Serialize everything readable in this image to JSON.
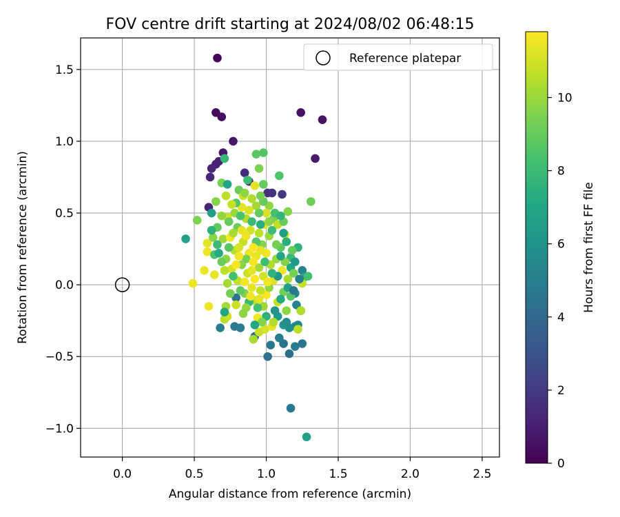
{
  "chart_data": {
    "type": "scatter",
    "title": "FOV centre drift starting at 2024/08/02 06:48:15",
    "xlabel": "Angular distance from reference (arcmin)",
    "ylabel": "Rotation from reference (arcmin)",
    "xlim": [
      -0.29,
      2.62
    ],
    "ylim": [
      -1.2,
      1.72
    ],
    "xticks": [
      0.0,
      0.5,
      1.0,
      1.5,
      2.0,
      2.5
    ],
    "xtick_labels": [
      "0.0",
      "0.5",
      "1.0",
      "1.5",
      "2.0",
      "2.5"
    ],
    "yticks": [
      -1.0,
      -0.5,
      0.0,
      0.5,
      1.0,
      1.5
    ],
    "ytick_labels": [
      "−1.0",
      "−0.5",
      "0.0",
      "0.5",
      "1.0",
      "1.5"
    ],
    "grid": true,
    "legend": {
      "placement": "top-right",
      "entries": [
        "Reference platepar"
      ]
    },
    "reference_point": {
      "x": 0.0,
      "y": 0.0,
      "marker": "open-circle"
    },
    "colorbar": {
      "label": "Hours from first FF file",
      "colormap": "viridis",
      "range": [
        0,
        11.8
      ],
      "ticks": [
        0,
        2,
        4,
        6,
        8,
        10
      ],
      "tick_labels": [
        "0",
        "2",
        "4",
        "6",
        "8",
        "10"
      ]
    },
    "points": [
      {
        "x": 0.66,
        "y": 1.58,
        "c": 0.2
      },
      {
        "x": 0.65,
        "y": 1.2,
        "c": 0.3
      },
      {
        "x": 0.69,
        "y": 1.17,
        "c": 0.4
      },
      {
        "x": 1.24,
        "y": 1.2,
        "c": 0.5
      },
      {
        "x": 1.39,
        "y": 1.15,
        "c": 0.6
      },
      {
        "x": 0.77,
        "y": 1.0,
        "c": 0.7
      },
      {
        "x": 0.7,
        "y": 0.92,
        "c": 0.8
      },
      {
        "x": 1.34,
        "y": 0.88,
        "c": 0.9
      },
      {
        "x": 0.67,
        "y": 0.86,
        "c": 1.0
      },
      {
        "x": 0.65,
        "y": 0.84,
        "c": 1.1
      },
      {
        "x": 0.62,
        "y": 0.81,
        "c": 1.2
      },
      {
        "x": 0.61,
        "y": 0.75,
        "c": 1.3
      },
      {
        "x": 0.85,
        "y": 0.78,
        "c": 1.4
      },
      {
        "x": 0.88,
        "y": 0.72,
        "c": 1.5
      },
      {
        "x": 1.01,
        "y": 0.64,
        "c": 1.6
      },
      {
        "x": 1.04,
        "y": 0.64,
        "c": 1.7
      },
      {
        "x": 1.11,
        "y": 0.63,
        "c": 1.9
      },
      {
        "x": 0.6,
        "y": 0.54,
        "c": 1.2
      },
      {
        "x": 1.17,
        "y": -0.86,
        "c": 4.8
      },
      {
        "x": 1.28,
        "y": -1.06,
        "c": 6.6
      },
      {
        "x": 0.44,
        "y": 0.32,
        "c": 6.7
      },
      {
        "x": 0.71,
        "y": 0.88,
        "c": 7.8
      },
      {
        "x": 0.93,
        "y": 0.91,
        "c": 8.7
      },
      {
        "x": 0.98,
        "y": 0.92,
        "c": 8.6
      },
      {
        "x": 1.09,
        "y": 0.76,
        "c": 8.5
      },
      {
        "x": 0.95,
        "y": 0.81,
        "c": 9.5
      },
      {
        "x": 0.98,
        "y": 0.7,
        "c": 9.0
      },
      {
        "x": 1.31,
        "y": 0.58,
        "c": 9.2
      },
      {
        "x": 1.15,
        "y": 0.51,
        "c": 9.6
      },
      {
        "x": 0.52,
        "y": 0.45,
        "c": 9.5
      },
      {
        "x": 0.49,
        "y": 0.01,
        "c": 11.5
      },
      {
        "x": 0.57,
        "y": 0.1,
        "c": 11.5
      },
      {
        "x": 0.6,
        "y": -0.15,
        "c": 11.5
      },
      {
        "x": 0.64,
        "y": 0.07,
        "c": 11.4
      },
      {
        "x": 0.59,
        "y": 0.23,
        "c": 11.5
      },
      {
        "x": 0.59,
        "y": 0.29,
        "c": 11.3
      },
      {
        "x": 0.68,
        "y": -0.3,
        "c": 5.0
      },
      {
        "x": 0.78,
        "y": -0.29,
        "c": 4.8
      },
      {
        "x": 0.82,
        "y": -0.3,
        "c": 4.9
      },
      {
        "x": 0.92,
        "y": -0.36,
        "c": 4.6
      },
      {
        "x": 1.01,
        "y": -0.5,
        "c": 4.4
      },
      {
        "x": 1.03,
        "y": -0.42,
        "c": 4.7
      },
      {
        "x": 1.09,
        "y": -0.37,
        "c": 5.0
      },
      {
        "x": 1.12,
        "y": -0.41,
        "c": 4.5
      },
      {
        "x": 1.16,
        "y": -0.48,
        "c": 4.3
      },
      {
        "x": 1.2,
        "y": -0.43,
        "c": 4.9
      },
      {
        "x": 1.25,
        "y": -0.41,
        "c": 4.6
      },
      {
        "x": 1.2,
        "y": -0.29,
        "c": 5.2
      },
      {
        "x": 1.22,
        "y": -0.28,
        "c": 5.5
      },
      {
        "x": 1.16,
        "y": -0.3,
        "c": 5.8
      },
      {
        "x": 1.12,
        "y": -0.28,
        "c": 6.1
      },
      {
        "x": 1.08,
        "y": -0.22,
        "c": 6.4
      },
      {
        "x": 1.21,
        "y": -0.14,
        "c": 5.3
      },
      {
        "x": 1.24,
        "y": -0.18,
        "c": 6.8
      },
      {
        "x": 1.2,
        "y": -0.06,
        "c": 5.6
      },
      {
        "x": 1.25,
        "y": 0.1,
        "c": 5.2
      },
      {
        "x": 1.26,
        "y": 0.05,
        "c": 7.3
      },
      {
        "x": 1.29,
        "y": 0.06,
        "c": 8.2
      },
      {
        "x": 1.25,
        "y": 0.01,
        "c": 10.7
      },
      {
        "x": 1.22,
        "y": 0.26,
        "c": 7.6
      },
      {
        "x": 1.17,
        "y": 0.19,
        "c": 7.9
      },
      {
        "x": 1.22,
        "y": -0.31,
        "c": 10.6
      },
      {
        "x": 1.24,
        "y": -0.18,
        "c": 10.4
      },
      {
        "x": 0.91,
        "y": -0.38,
        "c": 10.3
      },
      {
        "x": 0.95,
        "y": -0.33,
        "c": 10.8
      },
      {
        "x": 0.99,
        "y": -0.31,
        "c": 11.0
      },
      {
        "x": 1.04,
        "y": -0.29,
        "c": 11.4
      },
      {
        "x": 0.72,
        "y": -0.15,
        "c": 10.2
      },
      {
        "x": 0.71,
        "y": -0.24,
        "c": 10.5
      },
      {
        "x": 0.73,
        "y": -0.22,
        "c": 10.9
      },
      {
        "x": 0.84,
        "y": -0.2,
        "c": 9.8
      },
      {
        "x": 0.94,
        "y": -0.23,
        "c": 11.6
      },
      {
        "x": 0.79,
        "y": -0.09,
        "c": 4.5
      },
      {
        "x": 0.71,
        "y": -0.19,
        "c": 6.9
      },
      {
        "x": 0.64,
        "y": 0.21,
        "c": 8.4
      },
      {
        "x": 0.63,
        "y": 0.33,
        "c": 9.7
      },
      {
        "x": 0.62,
        "y": 0.5,
        "c": 6.5
      },
      {
        "x": 0.69,
        "y": 0.71,
        "c": 9.3
      },
      {
        "x": 0.73,
        "y": 0.7,
        "c": 7.0
      },
      {
        "x": 0.7,
        "y": 0.32,
        "c": 10.1
      },
      {
        "x": 0.73,
        "y": 0.47,
        "c": 11.0
      },
      {
        "x": 0.72,
        "y": 0.62,
        "c": 10.6
      },
      {
        "x": 0.81,
        "y": 0.66,
        "c": 9.1
      },
      {
        "x": 0.84,
        "y": 0.62,
        "c": 10.9
      },
      {
        "x": 0.92,
        "y": 0.69,
        "c": 11.3
      },
      {
        "x": 0.87,
        "y": 0.73,
        "c": 8.1
      },
      {
        "x": 0.93,
        "y": 0.55,
        "c": 10.2
      },
      {
        "x": 1.02,
        "y": 0.55,
        "c": 9.9
      },
      {
        "x": 0.98,
        "y": 0.58,
        "c": 9.0
      },
      {
        "x": 1.0,
        "y": 0.5,
        "c": 11.1
      },
      {
        "x": 1.05,
        "y": 0.46,
        "c": 9.4
      },
      {
        "x": 1.08,
        "y": 0.42,
        "c": 10.7
      },
      {
        "x": 1.12,
        "y": 0.44,
        "c": 9.1
      },
      {
        "x": 1.13,
        "y": 0.35,
        "c": 11.2
      },
      {
        "x": 1.1,
        "y": 0.26,
        "c": 8.8
      },
      {
        "x": 1.07,
        "y": 0.18,
        "c": 10.0
      },
      {
        "x": 1.13,
        "y": 0.16,
        "c": 9.6
      },
      {
        "x": 1.11,
        "y": 0.1,
        "c": 11.5
      },
      {
        "x": 1.15,
        "y": 0.04,
        "c": 10.3
      },
      {
        "x": 1.05,
        "y": 0.03,
        "c": 11.2
      },
      {
        "x": 1.12,
        "y": -0.05,
        "c": 9.3
      },
      {
        "x": 1.08,
        "y": -0.12,
        "c": 10.8
      },
      {
        "x": 1.0,
        "y": -0.07,
        "c": 11.7
      },
      {
        "x": 0.98,
        "y": -0.15,
        "c": 10.1
      },
      {
        "x": 0.92,
        "y": -0.11,
        "c": 10.6
      },
      {
        "x": 0.9,
        "y": -0.02,
        "c": 11.4
      },
      {
        "x": 0.85,
        "y": -0.06,
        "c": 9.5
      },
      {
        "x": 0.8,
        "y": 0.03,
        "c": 10.7
      },
      {
        "x": 0.73,
        "y": 0.01,
        "c": 10.2
      },
      {
        "x": 0.76,
        "y": 0.11,
        "c": 11.1
      },
      {
        "x": 0.72,
        "y": 0.18,
        "c": 9.8
      },
      {
        "x": 0.78,
        "y": 0.24,
        "c": 10.5
      },
      {
        "x": 0.75,
        "y": 0.33,
        "c": 11.6
      },
      {
        "x": 0.8,
        "y": 0.4,
        "c": 9.2
      },
      {
        "x": 0.78,
        "y": 0.5,
        "c": 10.0
      },
      {
        "x": 0.83,
        "y": 0.54,
        "c": 11.3
      },
      {
        "x": 0.86,
        "y": 0.46,
        "c": 10.4
      },
      {
        "x": 0.89,
        "y": 0.38,
        "c": 11.0
      },
      {
        "x": 0.84,
        "y": 0.3,
        "c": 10.8
      },
      {
        "x": 0.88,
        "y": 0.22,
        "c": 11.5
      },
      {
        "x": 0.83,
        "y": 0.14,
        "c": 9.7
      },
      {
        "x": 0.87,
        "y": 0.08,
        "c": 10.9
      },
      {
        "x": 0.92,
        "y": 0.04,
        "c": 11.8
      },
      {
        "x": 0.95,
        "y": 0.12,
        "c": 10.2
      },
      {
        "x": 0.93,
        "y": 0.2,
        "c": 11.4
      },
      {
        "x": 0.97,
        "y": 0.28,
        "c": 9.6
      },
      {
        "x": 0.95,
        "y": 0.36,
        "c": 10.6
      },
      {
        "x": 0.99,
        "y": 0.42,
        "c": 11.2
      },
      {
        "x": 1.02,
        "y": 0.34,
        "c": 10.0
      },
      {
        "x": 1.0,
        "y": 0.22,
        "c": 11.6
      },
      {
        "x": 1.03,
        "y": 0.14,
        "c": 10.4
      },
      {
        "x": 0.98,
        "y": 0.06,
        "c": 11.0
      },
      {
        "x": 1.02,
        "y": -0.02,
        "c": 9.9
      },
      {
        "x": 0.96,
        "y": -0.04,
        "c": 10.7
      },
      {
        "x": 0.9,
        "y": 0.1,
        "c": 11.3
      },
      {
        "x": 0.86,
        "y": 0.18,
        "c": 9.4
      },
      {
        "x": 0.81,
        "y": 0.26,
        "c": 11.1
      },
      {
        "x": 0.77,
        "y": 0.36,
        "c": 10.3
      },
      {
        "x": 0.74,
        "y": 0.44,
        "c": 9.0
      },
      {
        "x": 0.79,
        "y": 0.57,
        "c": 8.6
      },
      {
        "x": 0.85,
        "y": 0.64,
        "c": 9.8
      },
      {
        "x": 0.9,
        "y": 0.6,
        "c": 10.4
      },
      {
        "x": 0.95,
        "y": 0.5,
        "c": 8.9
      },
      {
        "x": 1.06,
        "y": 0.5,
        "c": 8.3
      },
      {
        "x": 1.1,
        "y": 0.48,
        "c": 7.7
      },
      {
        "x": 1.04,
        "y": 0.38,
        "c": 8.0
      },
      {
        "x": 1.14,
        "y": 0.3,
        "c": 7.4
      },
      {
        "x": 1.1,
        "y": 0.2,
        "c": 6.9
      },
      {
        "x": 1.17,
        "y": 0.12,
        "c": 7.1
      },
      {
        "x": 1.08,
        "y": 0.06,
        "c": 6.2
      },
      {
        "x": 1.15,
        "y": -0.02,
        "c": 6.6
      },
      {
        "x": 1.1,
        "y": -0.1,
        "c": 7.2
      },
      {
        "x": 1.06,
        "y": -0.18,
        "c": 6.0
      },
      {
        "x": 1.0,
        "y": -0.22,
        "c": 7.5
      },
      {
        "x": 0.94,
        "y": -0.16,
        "c": 8.3
      },
      {
        "x": 0.88,
        "y": -0.12,
        "c": 7.8
      },
      {
        "x": 0.82,
        "y": -0.04,
        "c": 8.9
      },
      {
        "x": 0.77,
        "y": 0.06,
        "c": 8.2
      },
      {
        "x": 0.74,
        "y": 0.26,
        "c": 8.7
      },
      {
        "x": 0.67,
        "y": 0.22,
        "c": 7.2
      },
      {
        "x": 0.66,
        "y": 0.4,
        "c": 8.9
      },
      {
        "x": 0.69,
        "y": 0.48,
        "c": 9.9
      },
      {
        "x": 0.76,
        "y": 0.56,
        "c": 10.8
      },
      {
        "x": 0.82,
        "y": 0.48,
        "c": 8.4
      },
      {
        "x": 0.9,
        "y": 0.44,
        "c": 7.9
      },
      {
        "x": 0.93,
        "y": 0.3,
        "c": 8.6
      },
      {
        "x": 0.99,
        "y": 0.16,
        "c": 8.1
      },
      {
        "x": 1.04,
        "y": 0.08,
        "c": 7.6
      },
      {
        "x": 1.07,
        "y": 0.28,
        "c": 9.3
      },
      {
        "x": 1.02,
        "y": 0.44,
        "c": 9.7
      },
      {
        "x": 0.96,
        "y": 0.62,
        "c": 9.4
      },
      {
        "x": 0.88,
        "y": 0.52,
        "c": 11.2
      },
      {
        "x": 0.81,
        "y": 0.2,
        "c": 11.6
      },
      {
        "x": 0.86,
        "y": 0.34,
        "c": 11.5
      },
      {
        "x": 0.91,
        "y": 0.16,
        "c": 11.7
      },
      {
        "x": 0.96,
        "y": 0.24,
        "c": 11.4
      },
      {
        "x": 0.85,
        "y": 0.02,
        "c": 11.6
      },
      {
        "x": 0.89,
        "y": -0.08,
        "c": 11.5
      },
      {
        "x": 0.95,
        "y": -0.1,
        "c": 11.3
      },
      {
        "x": 1.01,
        "y": 0.02,
        "c": 11.6
      },
      {
        "x": 0.91,
        "y": 0.26,
        "c": 11.8
      },
      {
        "x": 0.79,
        "y": 0.14,
        "c": 11.7
      },
      {
        "x": 0.83,
        "y": 0.38,
        "c": 11.4
      },
      {
        "x": 0.71,
        "y": 0.1,
        "c": 10.6
      },
      {
        "x": 0.69,
        "y": 0.16,
        "c": 9.1
      },
      {
        "x": 0.66,
        "y": 0.28,
        "c": 8.0
      },
      {
        "x": 0.62,
        "y": 0.38,
        "c": 7.5
      },
      {
        "x": 0.65,
        "y": 0.58,
        "c": 9.6
      },
      {
        "x": 1.18,
        "y": 0.24,
        "c": 9.0
      },
      {
        "x": 1.19,
        "y": 0.08,
        "c": 9.4
      },
      {
        "x": 1.17,
        "y": -0.08,
        "c": 8.6
      },
      {
        "x": 1.14,
        "y": -0.18,
        "c": 9.8
      },
      {
        "x": 1.05,
        "y": -0.26,
        "c": 10.4
      },
      {
        "x": 0.97,
        "y": -0.26,
        "c": 9.6
      },
      {
        "x": 0.92,
        "y": -0.28,
        "c": 7.1
      },
      {
        "x": 0.86,
        "y": -0.16,
        "c": 9.9
      },
      {
        "x": 0.79,
        "y": -0.14,
        "c": 10.9
      },
      {
        "x": 0.75,
        "y": -0.06,
        "c": 9.3
      },
      {
        "x": 0.96,
        "y": 0.42,
        "c": 7.3
      },
      {
        "x": 1.12,
        "y": 0.36,
        "c": 6.6
      },
      {
        "x": 1.2,
        "y": 0.16,
        "c": 6.3
      },
      {
        "x": 1.14,
        "y": -0.26,
        "c": 5.7
      },
      {
        "x": 1.19,
        "y": -0.04,
        "c": 4.7
      },
      {
        "x": 1.23,
        "y": 0.04,
        "c": 5.0
      }
    ]
  }
}
